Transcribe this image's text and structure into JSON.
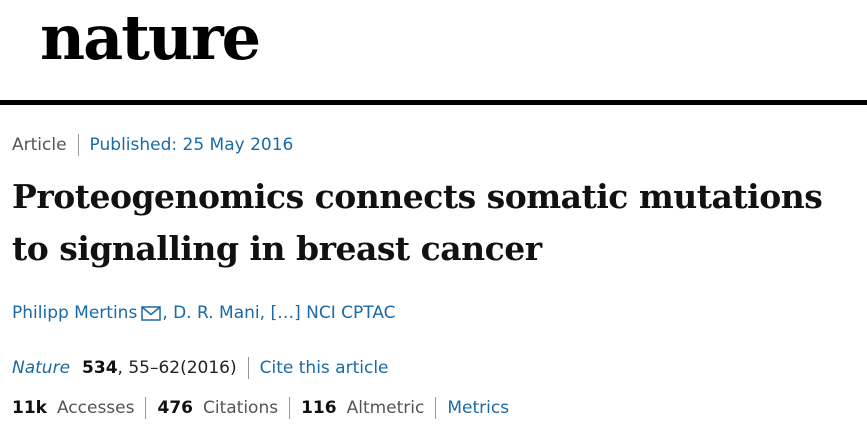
{
  "masthead": {
    "logo_text": "nature"
  },
  "article": {
    "type": "Article",
    "published": "Published: 25 May 2016",
    "title": "Proteogenomics connects somatic mutations to signalling in breast cancer"
  },
  "authors": {
    "first": "Philipp Mertins",
    "separator_1": ", ",
    "second": "D. R. Mani",
    "separator_2": ", ",
    "ellipsis": "[…]",
    "separator_3": " ",
    "last": "NCI CPTAC"
  },
  "citation": {
    "journal": "Nature",
    "volume": "534",
    "pages": ", 55–62(2016)",
    "cite_label": "Cite this article"
  },
  "metrics": {
    "accesses_value": "11k",
    "accesses_label": "Accesses",
    "citations_value": "476",
    "citations_label": "Citations",
    "altmetric_value": "116",
    "altmetric_label": "Altmetric",
    "metrics_link": "Metrics"
  },
  "colors": {
    "link": "#1a6aa8",
    "rule": "#000000",
    "muted": "#555555"
  },
  "icons": {
    "corresponding_author": "mail-icon"
  }
}
